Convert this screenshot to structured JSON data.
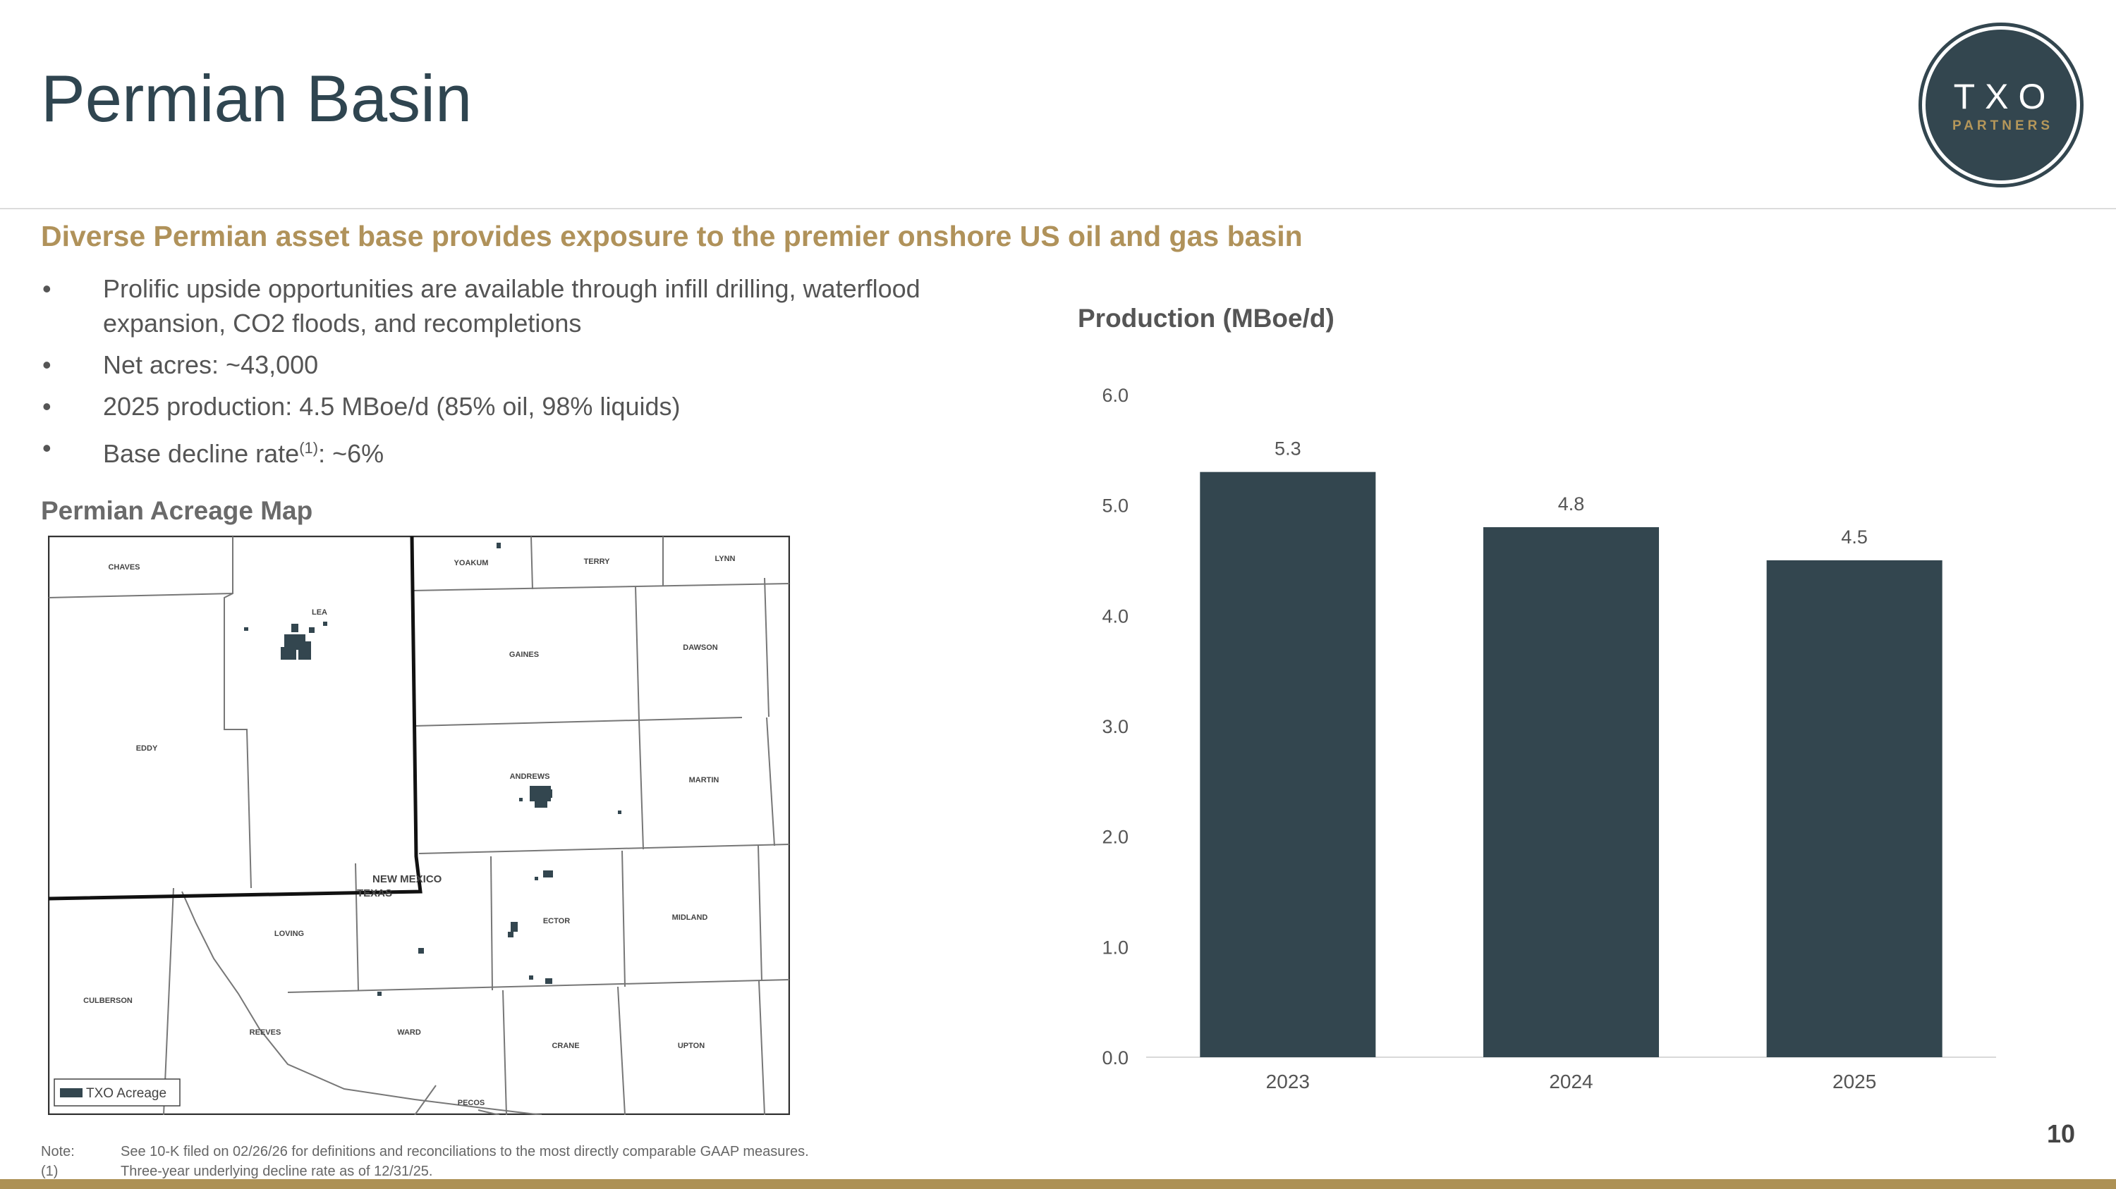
{
  "title": "Permian Basin",
  "logo": {
    "main": "TXO",
    "sub": "PARTNERS"
  },
  "subtitle": "Diverse Permian asset base provides exposure to the premier onshore US oil and gas basin",
  "bullets": [
    {
      "marker": "•",
      "text": "Prolific upside opportunities are available through infill drilling, waterflood expansion, CO2 floods, and recompletions"
    },
    {
      "marker": "•",
      "text": "Net acres: ~43,000"
    },
    {
      "marker": "•",
      "text": "2025 production: 4.5 MBoe/d (85% oil, 98% liquids)"
    },
    {
      "marker": "•",
      "text_before": "Base decline rate",
      "sup": "(1)",
      "text_after": ": ~6%"
    }
  ],
  "map": {
    "title": "Permian Acreage Map",
    "legend": "TXO Acreage",
    "state_labels": [
      "NEW MEXICO",
      "TEXAS"
    ],
    "counties": {
      "chaves": "CHAVES",
      "lea": "LEA",
      "eddy": "EDDY",
      "yoakum": "YOAKUM",
      "terry": "TERRY",
      "lynn": "LYNN",
      "gaines": "GAINES",
      "dawson": "DAWSON",
      "andrews": "ANDREWS",
      "martin": "MARTIN",
      "loving": "LOVING",
      "ector": "ECTOR",
      "midland": "MIDLAND",
      "culberson": "CULBERSON",
      "reeves": "REEVES",
      "ward": "WARD",
      "crane": "CRANE",
      "upton": "UPTON",
      "pecos": "PECOS"
    }
  },
  "chart_data": {
    "type": "bar",
    "title": "Production (MBoe/d)",
    "categories": [
      "2023",
      "2024",
      "2025"
    ],
    "values": [
      5.3,
      4.8,
      4.5
    ],
    "value_labels": [
      "5.3",
      "4.8",
      "4.5"
    ],
    "y_ticks": [
      "0.0",
      "1.0",
      "2.0",
      "3.0",
      "4.0",
      "5.0",
      "6.0"
    ],
    "ylim": [
      0,
      6
    ],
    "grid": false,
    "bar_color": "#33464f",
    "xlabel": "",
    "ylabel": ""
  },
  "notes": [
    {
      "label": "Note:",
      "text": "See 10-K filed on 02/26/26 for definitions and reconciliations to the most directly comparable GAAP measures."
    },
    {
      "label": "(1)",
      "text": "Three-year underlying decline rate as of 12/31/25."
    }
  ],
  "page_number": "10",
  "colors": {
    "accent": "#b0925a",
    "dark": "#33464f",
    "bar_bottom": "#ad9155"
  }
}
